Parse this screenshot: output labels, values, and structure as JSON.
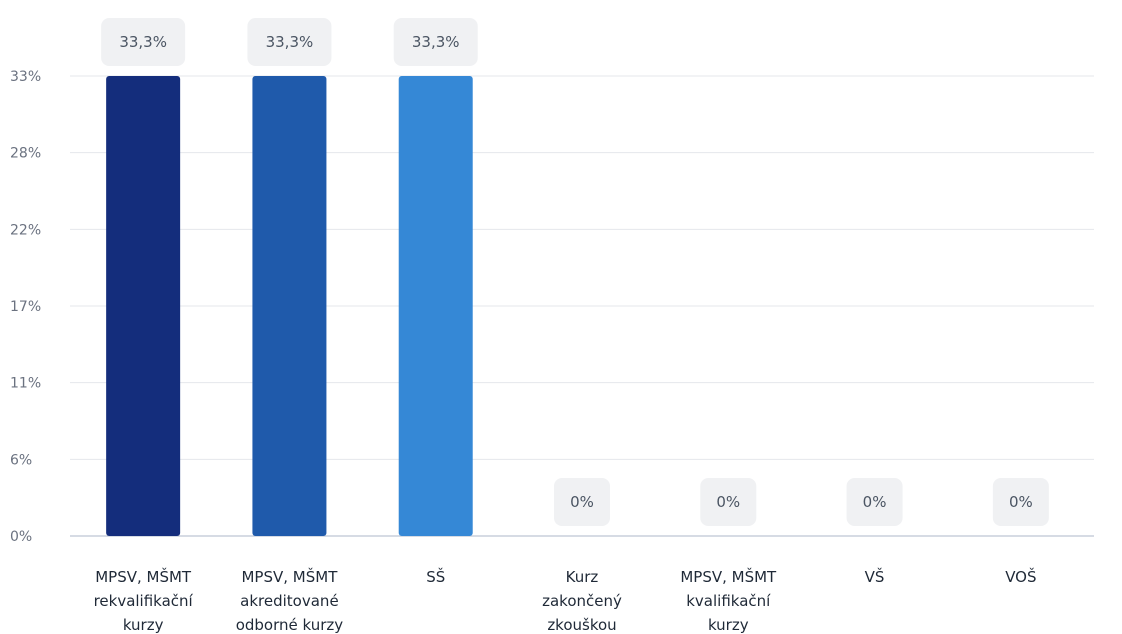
{
  "chart_data": {
    "type": "bar",
    "categories": [
      [
        "MPSV, MŠMT",
        "rekvalifikační",
        "kurzy"
      ],
      [
        "MPSV, MŠMT",
        "akreditované",
        "odborné kurzy"
      ],
      [
        "SŠ"
      ],
      [
        "Kurz",
        "zakončený",
        "zkouškou"
      ],
      [
        "MPSV, MŠMT",
        "kvalifikační",
        "kurzy"
      ],
      [
        "VŠ"
      ],
      [
        "VOŠ"
      ]
    ],
    "values": [
      33.3,
      33.3,
      33.3,
      0,
      0,
      0,
      0
    ],
    "data_labels": [
      "33,3%",
      "33,3%",
      "33,3%",
      "0%",
      "0%",
      "0%",
      "0%"
    ],
    "bar_colors": [
      "#142d7c",
      "#1f5aab",
      "#3588d6",
      "#3588d6",
      "#3588d6",
      "#3588d6",
      "#3588d6"
    ],
    "yticks": [
      {
        "value": 33.3,
        "label": "33%"
      },
      {
        "value": 27.75,
        "label": "28%"
      },
      {
        "value": 22.2,
        "label": "22%"
      },
      {
        "value": 16.65,
        "label": "17%"
      },
      {
        "value": 11.1,
        "label": "11%"
      },
      {
        "value": 5.55,
        "label": "6%"
      },
      {
        "value": 0,
        "label": "0%"
      }
    ],
    "ylim": [
      0,
      33.3
    ],
    "grid": true,
    "gridColor": "#e5e7eb",
    "axisColor": "#d6dbe4",
    "labelBoxColor": "#f0f1f3"
  }
}
